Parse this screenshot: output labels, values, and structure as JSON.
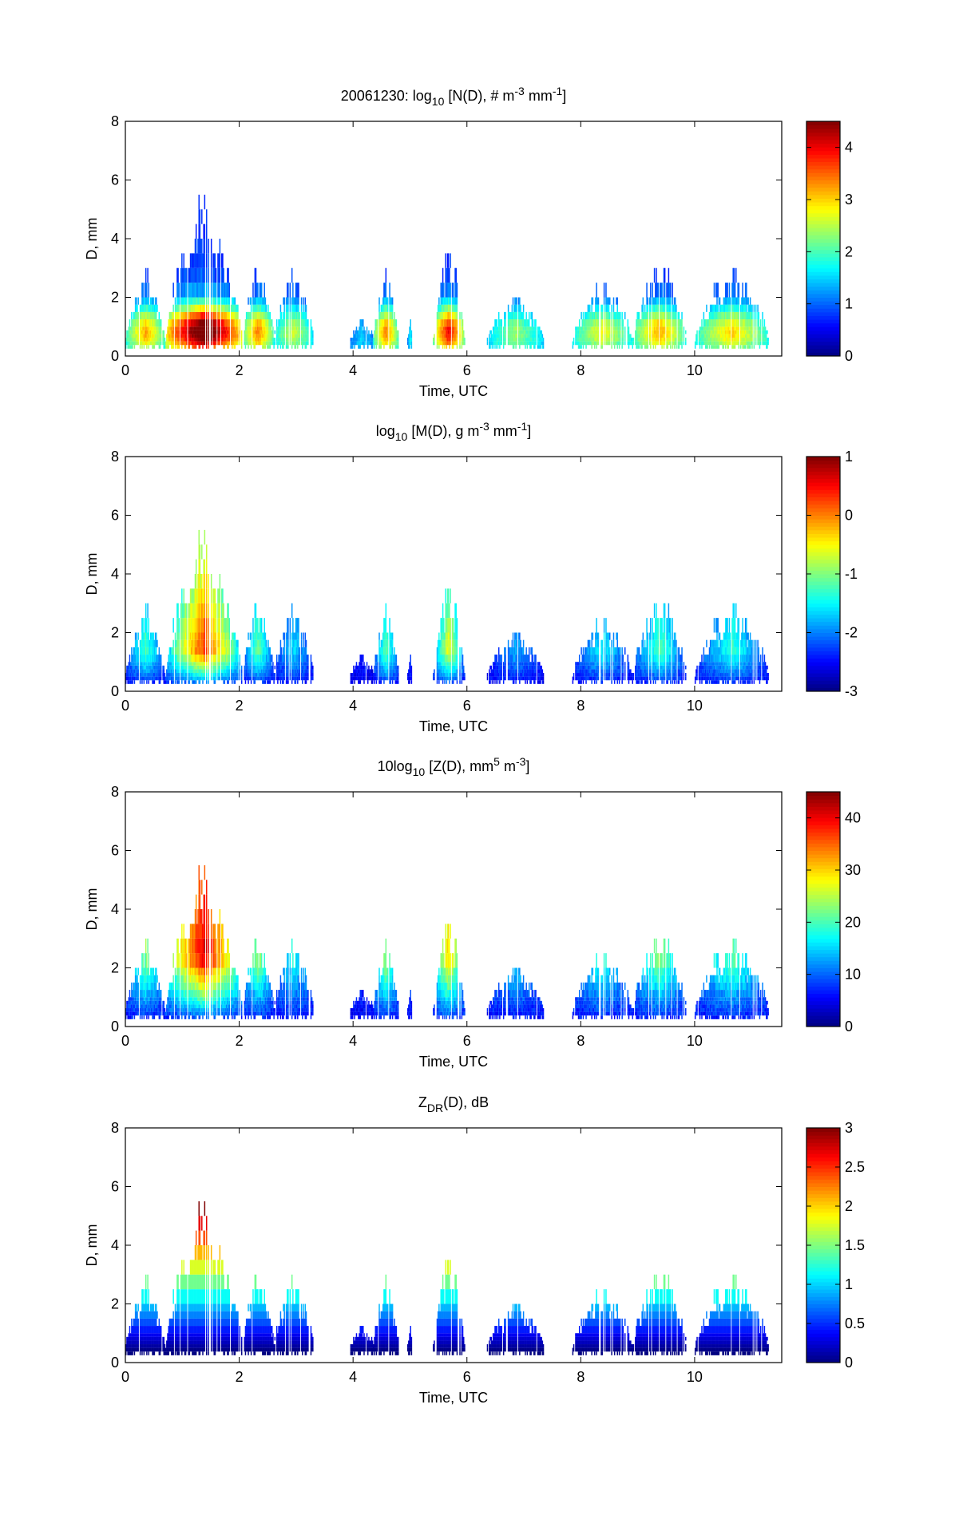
{
  "chart_data": {
    "type": "heatmap",
    "date": "20061230",
    "x": {
      "label": "Time, UTC",
      "lim": [
        0,
        11.53
      ],
      "ticks": [
        0,
        2,
        4,
        6,
        8,
        10
      ],
      "tick_labels": [
        "0",
        "2",
        "4",
        "6",
        "8",
        "10"
      ]
    },
    "y": {
      "label": "D, mm",
      "lim": [
        0,
        8
      ],
      "ticks": [
        0,
        2,
        4,
        6,
        8
      ],
      "tick_labels": [
        "0",
        "2",
        "4",
        "6",
        "8"
      ]
    },
    "events": [
      {
        "t_start": 0.0,
        "t_end": 0.7,
        "dmax": 2.9,
        "intensity": 0.55
      },
      {
        "t_start": 0.7,
        "t_end": 2.05,
        "dmax": 5.4,
        "intensity": 1.0
      },
      {
        "t_start": 2.05,
        "t_end": 2.6,
        "dmax": 3.1,
        "intensity": 0.6
      },
      {
        "t_start": 2.6,
        "t_end": 3.3,
        "dmax": 2.9,
        "intensity": 0.4
      },
      {
        "t_start": 3.95,
        "t_end": 4.35,
        "dmax": 1.3,
        "intensity": 0.15
      },
      {
        "t_start": 4.35,
        "t_end": 4.8,
        "dmax": 2.9,
        "intensity": 0.6
      },
      {
        "t_start": 4.95,
        "t_end": 5.05,
        "dmax": 1.3,
        "intensity": 0.2
      },
      {
        "t_start": 5.4,
        "t_end": 5.95,
        "dmax": 3.9,
        "intensity": 0.75
      },
      {
        "t_start": 6.35,
        "t_end": 7.35,
        "dmax": 2.1,
        "intensity": 0.35
      },
      {
        "t_start": 7.85,
        "t_end": 8.9,
        "dmax": 2.6,
        "intensity": 0.45
      },
      {
        "t_start": 8.9,
        "t_end": 9.85,
        "dmax": 3.3,
        "intensity": 0.55
      },
      {
        "t_start": 10.0,
        "t_end": 11.3,
        "dmax": 3.1,
        "intensity": 0.5
      }
    ],
    "panels": [
      {
        "id": "nd",
        "title_prefix": "20061230: log",
        "title_sub": "10",
        "title_rest": " [N(D), # m",
        "title_sup1": "-3",
        "title_mid": " mm",
        "title_sup2": "-1",
        "title_end": "]",
        "quantity": "log10 N(D)",
        "units": "# m^-3 mm^-1",
        "clim": [
          0,
          4.5
        ],
        "cbar_ticks": [
          0,
          1,
          2,
          3,
          4
        ],
        "cbar_tick_labels": [
          "0",
          "1",
          "2",
          "3",
          "4"
        ]
      },
      {
        "id": "md",
        "title_prefix": "log",
        "title_sub": "10",
        "title_rest": " [M(D), g m",
        "title_sup1": "-3",
        "title_mid": " mm",
        "title_sup2": "-1",
        "title_end": "]",
        "quantity": "log10 M(D)",
        "units": "g m^-3 mm^-1",
        "clim": [
          -3,
          1
        ],
        "cbar_ticks": [
          -3,
          -2,
          -1,
          0,
          1
        ],
        "cbar_tick_labels": [
          "-3",
          "-2",
          "-1",
          "0",
          "1"
        ]
      },
      {
        "id": "zd",
        "title_prefix": "10log",
        "title_sub": "10",
        "title_rest": " [Z(D),  mm",
        "title_sup1": "5",
        "title_mid": " m",
        "title_sup2": "-3",
        "title_end": "]",
        "quantity": "10log10 Z(D)",
        "units": "mm^5 m^-3",
        "clim": [
          0,
          45
        ],
        "cbar_ticks": [
          0,
          10,
          20,
          30,
          40
        ],
        "cbar_tick_labels": [
          "0",
          "10",
          "20",
          "30",
          "40"
        ]
      },
      {
        "id": "zdr",
        "title_prefix": "Z",
        "title_sub": "DR",
        "title_rest": "(D), dB",
        "title_sup1": "",
        "title_mid": "",
        "title_sup2": "",
        "title_end": "",
        "quantity": "ZDR(D)",
        "units": "dB",
        "clim": [
          0,
          3
        ],
        "cbar_ticks": [
          0,
          0.5,
          1,
          1.5,
          2,
          2.5,
          3
        ],
        "cbar_tick_labels": [
          "0",
          "0.5",
          "1",
          "1.5",
          "2",
          "2.5",
          "3"
        ]
      }
    ]
  }
}
